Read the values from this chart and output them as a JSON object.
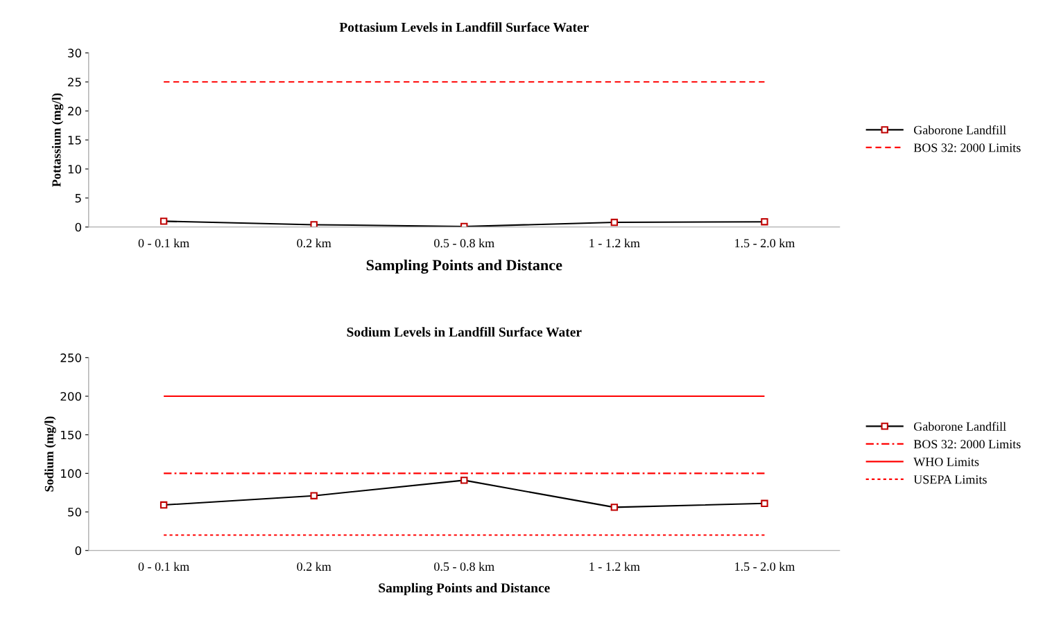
{
  "chart_data": [
    {
      "type": "line",
      "title": "Pottasium Levels in Landfill Surface Water",
      "xlabel": "Sampling Points and Distance",
      "ylabel": "Pottassium (mg/l)",
      "categories": [
        "0 - 0.1 km",
        "0.2 km",
        "0.5 - 0.8 km",
        "1 - 1.2 km",
        "1.5 - 2.0 km"
      ],
      "series": [
        {
          "name": "Gaborone Landfill",
          "color": "#000000",
          "marker": "square",
          "line_style": "solid",
          "values": [
            1.0,
            0.4,
            0.1,
            0.8,
            0.9
          ]
        },
        {
          "name": "BOS 32: 2000 Limits",
          "color": "#ff0000",
          "marker": "none",
          "line_style": "dashed",
          "values": [
            25,
            25,
            25,
            25,
            25
          ]
        }
      ],
      "ylim": [
        0,
        30
      ],
      "yticks": [
        0,
        5,
        10,
        15,
        20,
        25,
        30
      ],
      "grid": false,
      "legend": "right"
    },
    {
      "type": "line",
      "title": "Sodium Levels in Landfill Surface Water",
      "xlabel": "Sampling Points and Distance",
      "ylabel": "Sodium (mg/l)",
      "categories": [
        "0 - 0.1 km",
        "0.2 km",
        "0.5 - 0.8 km",
        "1 - 1.2 km",
        "1.5 - 2.0 km"
      ],
      "series": [
        {
          "name": "Gaborone Landfill",
          "color": "#000000",
          "marker": "square",
          "line_style": "solid",
          "values": [
            59,
            71,
            91,
            56,
            61
          ]
        },
        {
          "name": "BOS 32: 2000 Limits",
          "color": "#ff0000",
          "marker": "none",
          "line_style": "dashdot",
          "values": [
            100,
            100,
            100,
            100,
            100
          ]
        },
        {
          "name": "WHO Limits",
          "color": "#ff0000",
          "marker": "none",
          "line_style": "solid",
          "values": [
            200,
            200,
            200,
            200,
            200
          ]
        },
        {
          "name": "USEPA Limits",
          "color": "#ff0000",
          "marker": "none",
          "line_style": "dotted",
          "values": [
            20,
            20,
            20,
            20,
            20
          ]
        }
      ],
      "ylim": [
        0,
        250
      ],
      "yticks": [
        0,
        50,
        100,
        150,
        200,
        250
      ],
      "grid": false,
      "legend": "right"
    }
  ]
}
